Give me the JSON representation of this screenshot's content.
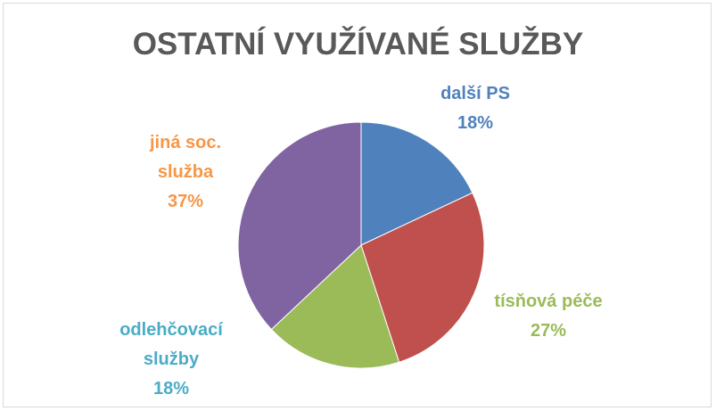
{
  "chart_data": {
    "type": "pie",
    "title": "OSTATNÍ VYUŽÍVANÉ SLUŽBY",
    "categories": [
      "další PS",
      "tísňová péče",
      "odlehčovací služby",
      "jiná soc. služba"
    ],
    "values": [
      18,
      27,
      18,
      37
    ],
    "value_labels": [
      "18%",
      "27%",
      "18%",
      "37%"
    ],
    "colors": [
      "#4f81bd",
      "#c0504d",
      "#9bbb59",
      "#8064a2"
    ],
    "label_colors": [
      "#4f81bd",
      "#9bbb59",
      "#4bacc6",
      "#f79646"
    ]
  }
}
